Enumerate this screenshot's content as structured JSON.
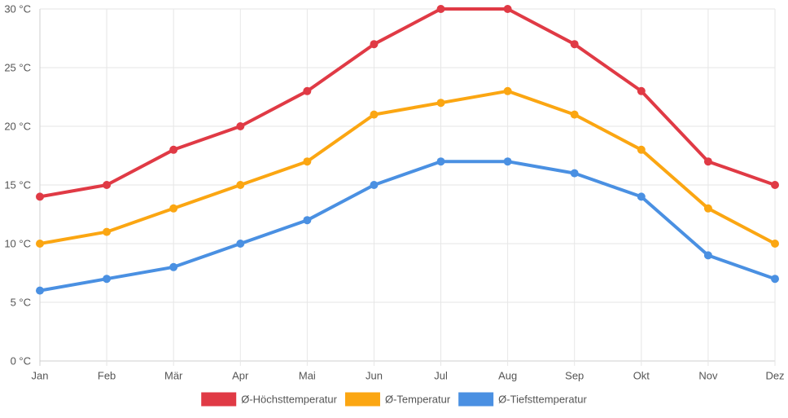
{
  "chart_data": {
    "type": "line",
    "categories": [
      "Jan",
      "Feb",
      "Mär",
      "Apr",
      "Mai",
      "Jun",
      "Jul",
      "Aug",
      "Sep",
      "Okt",
      "Nov",
      "Dez"
    ],
    "ylim": [
      0,
      30
    ],
    "yticks": [
      0,
      5,
      10,
      15,
      20,
      25,
      30
    ],
    "ytick_labels": [
      "0 °C",
      "5 °C",
      "10 °C",
      "15 °C",
      "20 °C",
      "25 °C",
      "30 °C"
    ],
    "grid": true,
    "legend_position": "bottom",
    "series": [
      {
        "name": "Ø-Höchsttemperatur",
        "color": "#e03a45",
        "values": [
          14,
          15,
          18,
          20,
          23,
          27,
          30,
          30,
          27,
          23,
          17,
          15
        ]
      },
      {
        "name": "Ø-Temperatur",
        "color": "#fba612",
        "values": [
          10,
          11,
          13,
          15,
          17,
          21,
          22,
          23,
          21,
          18,
          13,
          10
        ]
      },
      {
        "name": "Ø-Tiefsttemperatur",
        "color": "#4a90e2",
        "values": [
          6,
          7,
          8,
          10,
          12,
          15,
          17,
          17,
          16,
          14,
          9,
          7
        ]
      }
    ]
  }
}
